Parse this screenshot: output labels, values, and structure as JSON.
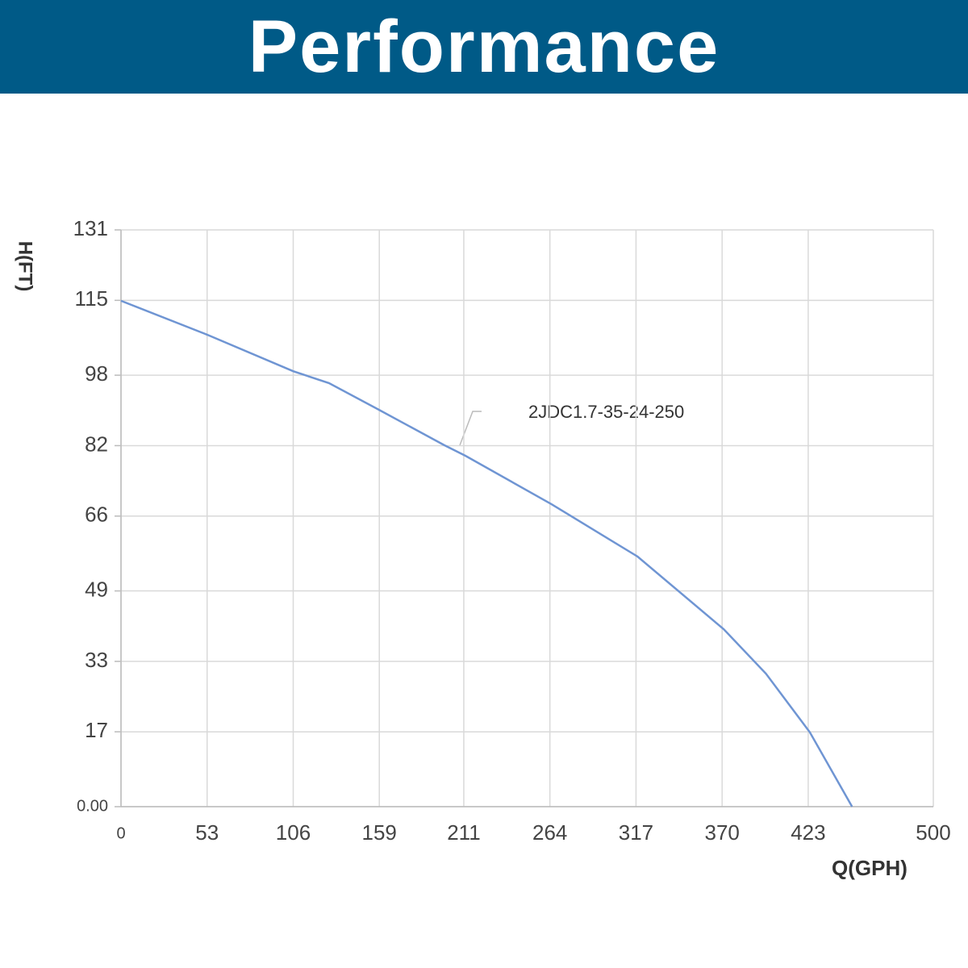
{
  "header": {
    "title": "Performance"
  },
  "chart_data": {
    "type": "line",
    "x_label": "Q(GPH)",
    "y_label": "H(FT)",
    "annotation": "2JDC1.7-35-24-250",
    "grid": true,
    "xlim": [
      0,
      500
    ],
    "xticks": [
      0,
      53,
      106,
      159,
      211,
      264,
      317,
      370,
      423,
      500
    ],
    "ylim": [
      0,
      131
    ],
    "yticks": [
      {
        "value": 0,
        "label": "0.00"
      },
      17,
      33,
      49,
      66,
      82,
      98,
      115,
      131
    ],
    "series": [
      {
        "name": "2JDC1.7-35-24-250",
        "color": "#6f95d3",
        "x": [
          0,
          53,
          106,
          128,
          159,
          199,
          212,
          265,
          318,
          371,
          397,
          424,
          450
        ],
        "values": [
          114.9,
          107.2,
          98.9,
          96.2,
          90.1,
          82.1,
          79.7,
          68.7,
          56.8,
          40.3,
          30.2,
          16.9,
          0
        ]
      }
    ]
  }
}
